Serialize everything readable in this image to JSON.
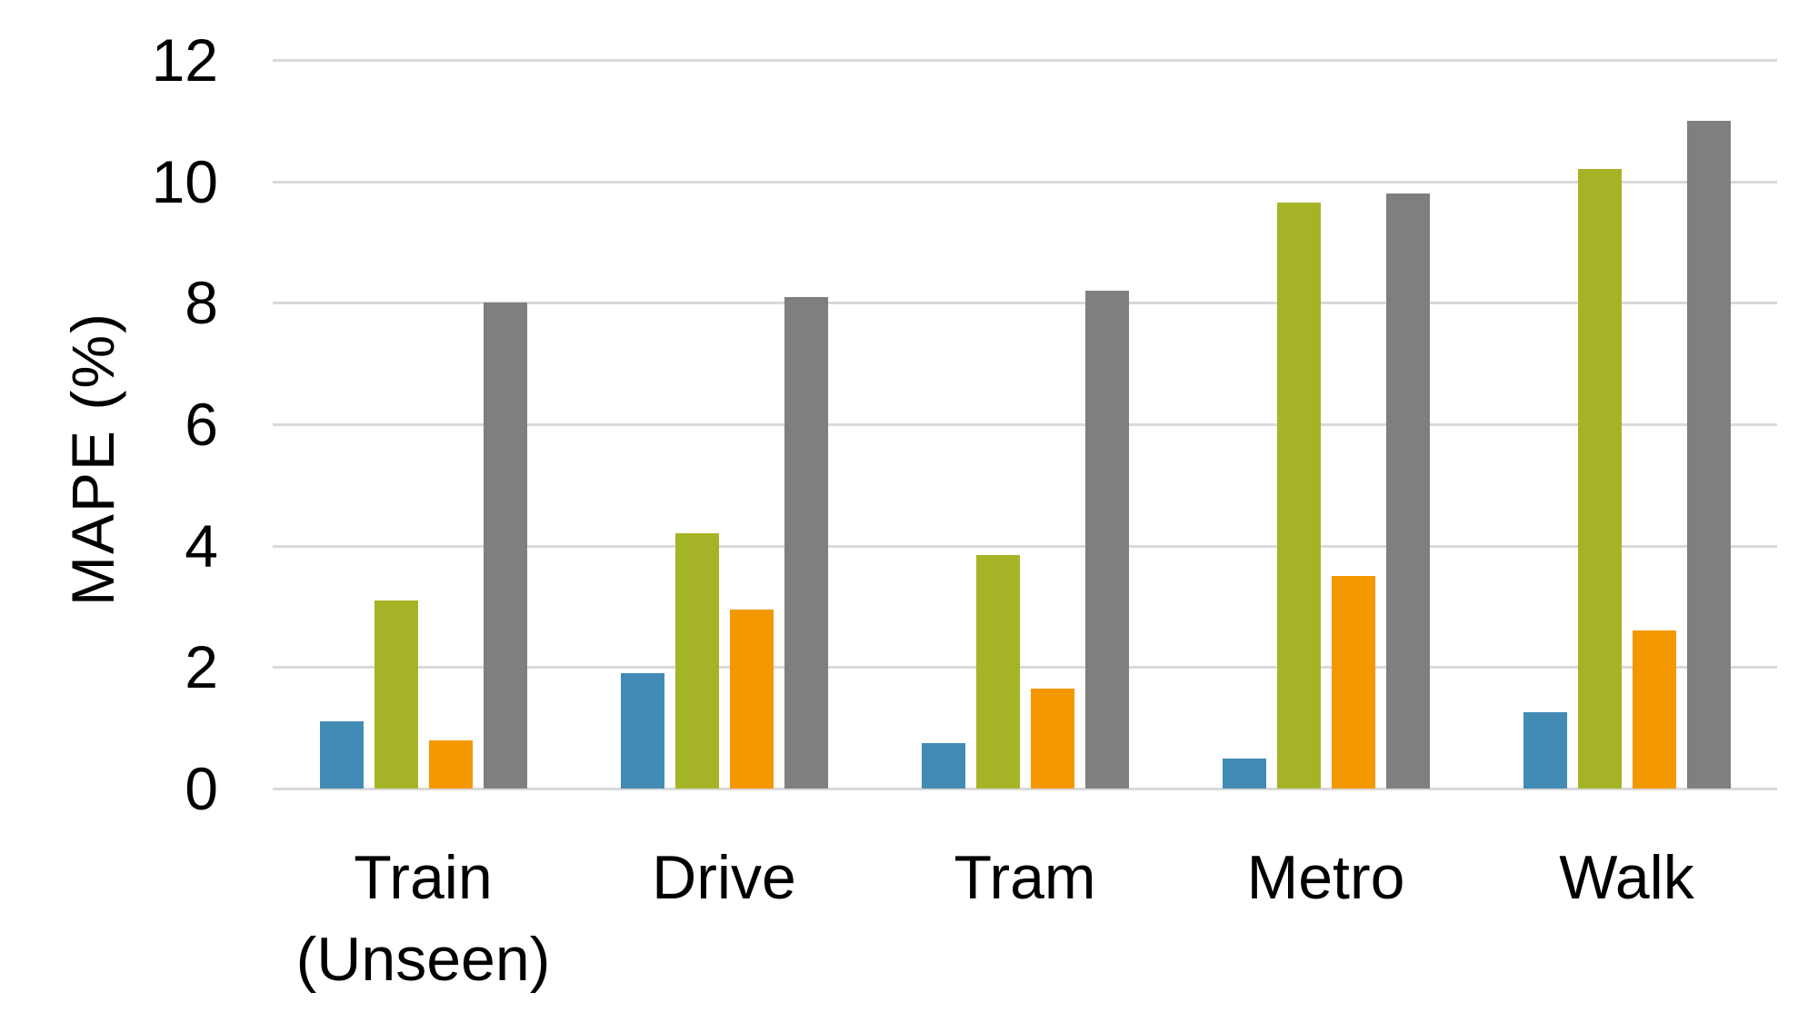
{
  "chart_data": {
    "type": "bar",
    "title": "",
    "ylabel": "MAPE (%)",
    "xlabel": "",
    "categories": [
      "Train\n(Unseen)",
      "Drive",
      "Tram",
      "Metro",
      "Walk"
    ],
    "series": [
      {
        "name": "blue",
        "color": "#428BB5",
        "values": [
          1.1,
          1.9,
          0.75,
          0.5,
          1.25
        ]
      },
      {
        "name": "green",
        "color": "#A5B427",
        "values": [
          3.1,
          4.2,
          3.85,
          9.65,
          10.2
        ]
      },
      {
        "name": "orange",
        "color": "#F49800",
        "values": [
          0.8,
          2.95,
          1.65,
          3.5,
          2.6
        ]
      },
      {
        "name": "gray",
        "color": "#7F7F7F",
        "values": [
          8.0,
          8.1,
          8.2,
          9.8,
          11.0
        ]
      }
    ],
    "yticks": [
      0,
      2,
      4,
      6,
      8,
      10,
      12
    ],
    "ylim": [
      0,
      12
    ],
    "grid": true,
    "gridline_color": "#D9D9D9",
    "legend": "none"
  }
}
